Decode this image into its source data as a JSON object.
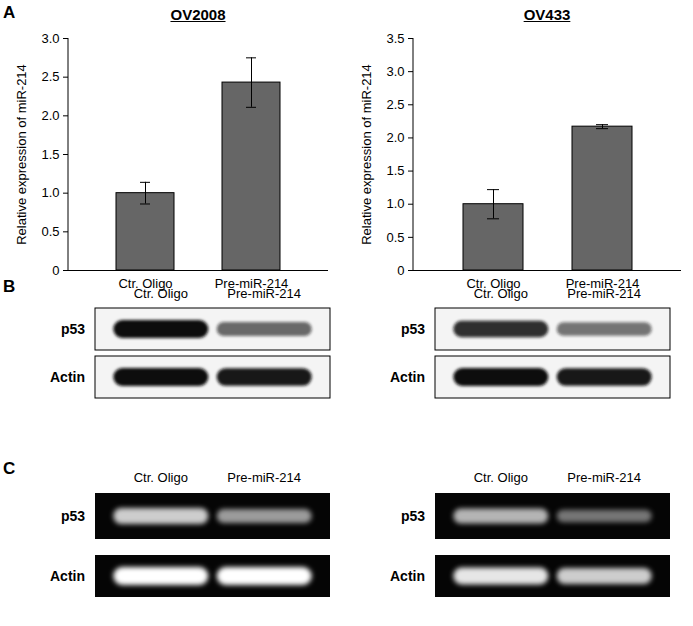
{
  "panel_label": "A",
  "chart_data": [
    {
      "type": "bar",
      "title": "OV2008",
      "categories": [
        "Ctr. Oligo",
        "Pre-miR-214"
      ],
      "values": [
        1.0,
        2.43
      ],
      "errors": [
        0.14,
        0.32
      ],
      "color": "#666666",
      "ylabel": "Relative expression of miR-214",
      "ylim": [
        0,
        3.0
      ],
      "yticks": [
        0,
        {
          "value": 0.5,
          "label": "0.5"
        },
        {
          "value": 1,
          "label": "1.0"
        },
        {
          "value": 1.5,
          "label": "1.5"
        },
        {
          "value": 2,
          "label": "2.0"
        },
        {
          "value": 2.5,
          "label": "2.5"
        },
        {
          "value": 3,
          "label": "3.0"
        }
      ]
    },
    {
      "type": "bar",
      "title": "OV433",
      "categories": [
        "Ctr. Oligo",
        "Pre-miR-214"
      ],
      "values": [
        1.0,
        2.17
      ],
      "errors": [
        0.22,
        0.03
      ],
      "color": "#666666",
      "ylabel": "Relative expression of miR-214",
      "ylim": [
        0,
        3.5
      ],
      "yticks": [
        0,
        {
          "value": 0.5,
          "label": "0.5"
        },
        {
          "value": 1,
          "label": "1.0"
        },
        {
          "value": 1.5,
          "label": "1.5"
        },
        {
          "value": 2,
          "label": "2.0"
        },
        {
          "value": 2.5,
          "label": "2.5"
        },
        {
          "value": 3,
          "label": "3.0"
        },
        {
          "value": 3.5,
          "label": "3.5"
        }
      ]
    }
  ],
  "panels": [
    {
      "label": "B",
      "style": "blot",
      "images": [
        {
          "lanes": [
            "Ctr. Oligo",
            "Pre-miR-214"
          ],
          "rows": [
            {
              "name": "p53",
              "intensity": [
                1.0,
                0.6
              ]
            },
            {
              "name": "Actin",
              "intensity": [
                1.0,
                0.95
              ]
            }
          ]
        },
        {
          "lanes": [
            "Ctr. Oligo",
            "Pre-miR-214"
          ],
          "rows": [
            {
              "name": "p53",
              "intensity": [
                0.85,
                0.55
              ]
            },
            {
              "name": "Actin",
              "intensity": [
                1.0,
                0.95
              ]
            }
          ]
        }
      ]
    },
    {
      "label": "C",
      "style": "gel",
      "images": [
        {
          "lanes": [
            "Ctr. Oligo",
            "Pre-miR-214"
          ],
          "rows": [
            {
              "name": "p53",
              "intensity": [
                0.8,
                0.6
              ]
            },
            {
              "name": "Actin",
              "intensity": [
                1.0,
                1.0
              ]
            }
          ]
        },
        {
          "lanes": [
            "Ctr. Oligo",
            "Pre-miR-214"
          ],
          "rows": [
            {
              "name": "p53",
              "intensity": [
                0.7,
                0.45
              ]
            },
            {
              "name": "Actin",
              "intensity": [
                0.9,
                0.8
              ]
            }
          ]
        }
      ]
    }
  ]
}
